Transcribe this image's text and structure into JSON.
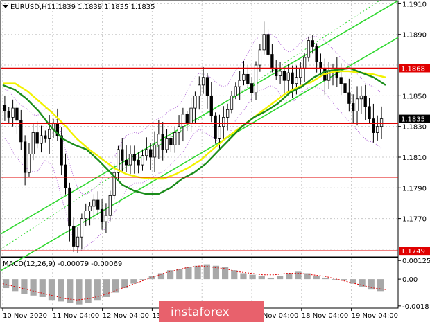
{
  "header": {
    "symbol": "EURUSD,H1",
    "ohlc": "1.1839 1.1839 1.1835 1.1835"
  },
  "macd": {
    "label": "MACD(12,26,9) -0.00079 -0.00069"
  },
  "watermark": {
    "text": "instaforex"
  },
  "colors": {
    "candle": "#000000",
    "ma_slow": "#1a8c1a",
    "ma_fast": "#f2f200",
    "channel": "#2fd82f",
    "level": "#e00000",
    "macd_hist": "#a8a8a8",
    "macd_signal": "#e00000",
    "envelope": "#b36bd9",
    "grid": "#c8c8c8"
  },
  "chart_data": [
    {
      "type": "candlestick",
      "title": "EURUSD,H1",
      "ylim": [
        1.1745,
        1.1912
      ],
      "y_ticks": [
        "1.1910",
        "1.1890",
        "1.1868",
        "1.1850",
        "1.1835",
        "1.1830",
        "1.1810",
        "1.1790",
        "1.1770",
        "1.1749"
      ],
      "x_labels": [
        "10 Nov 2020",
        "11 Nov 04:00",
        "12 Nov 04:00",
        "13 Nov 04:00",
        "16 Nov 04:00",
        "17 Nov 04:00",
        "18 Nov 04:00",
        "19 Nov 04:00"
      ],
      "current_price": 1.1835,
      "levels": [
        {
          "label": "1.1868",
          "value": 1.1868
        },
        {
          "label": "1.1832",
          "value": 1.1832
        },
        {
          "label": "1.1797",
          "value": 1.1797
        },
        {
          "label": "1.1749",
          "value": 1.1749
        }
      ],
      "close_path": [
        1.184,
        1.1836,
        1.1842,
        1.1834,
        1.182,
        1.18,
        1.1812,
        1.1826,
        1.1819,
        1.1824,
        1.1822,
        1.1828,
        1.1832,
        1.1824,
        1.1805,
        1.179,
        1.1765,
        1.1752,
        1.1758,
        1.177,
        1.1775,
        1.1778,
        1.1782,
        1.1776,
        1.1768,
        1.1772,
        1.1785,
        1.18,
        1.1815,
        1.1808,
        1.1805,
        1.1812,
        1.1808,
        1.1805,
        1.1811,
        1.1815,
        1.181,
        1.1818,
        1.1825,
        1.1815,
        1.1822,
        1.1818,
        1.1826,
        1.183,
        1.1838,
        1.1832,
        1.1842,
        1.185,
        1.1857,
        1.1862,
        1.185,
        1.1837,
        1.1822,
        1.183,
        1.1836,
        1.1841,
        1.185,
        1.1856,
        1.186,
        1.1864,
        1.1858,
        1.1852,
        1.187,
        1.188,
        1.189,
        1.1877,
        1.1868,
        1.1863,
        1.1866,
        1.186,
        1.1865,
        1.1858,
        1.1862,
        1.1868,
        1.1875,
        1.1886,
        1.1882,
        1.1872,
        1.1868,
        1.186,
        1.1866,
        1.1868,
        1.1862,
        1.1858,
        1.1852,
        1.1845,
        1.184,
        1.1848,
        1.185,
        1.1843,
        1.1835,
        1.1826,
        1.183,
        1.1835
      ],
      "ma_slow": [
        1.1857,
        1.1854,
        1.1848,
        1.184,
        1.183,
        1.1822,
        1.1818,
        1.1815,
        1.1808,
        1.18,
        1.1792,
        1.1788,
        1.1786,
        1.1786,
        1.179,
        1.1796,
        1.18,
        1.1806,
        1.1814,
        1.1822,
        1.183,
        1.1836,
        1.184,
        1.1845,
        1.1852,
        1.1856,
        1.1862,
        1.1866,
        1.1867,
        1.1868,
        1.1865,
        1.1862,
        1.1857
      ],
      "ma_fast": [
        1.1858,
        1.1858,
        1.1853,
        1.1846,
        1.1839,
        1.1831,
        1.1822,
        1.1815,
        1.1809,
        1.1803,
        1.1799,
        1.1797,
        1.1796,
        1.1796,
        1.1799,
        1.1803,
        1.1808,
        1.1815,
        1.1822,
        1.1828,
        1.1834,
        1.184,
        1.1846,
        1.1852,
        1.1856,
        1.1859,
        1.1864,
        1.1866,
        1.1866,
        1.1865,
        1.1864,
        1.1862
      ],
      "channel_lines": [
        {
          "from": [
            0,
            1.176
          ],
          "to": [
            1,
            1.1912
          ]
        },
        {
          "from": [
            0,
            1.1736
          ],
          "to": [
            1,
            1.1888
          ]
        },
        {
          "from": [
            0,
            1.175
          ],
          "to": [
            1,
            1.192
          ]
        }
      ]
    },
    {
      "type": "bar",
      "title": "MACD(12,26,9) -0.00079 -0.00069",
      "ylim": [
        -0.0019,
        0.0014
      ],
      "y_ticks": [
        "0.00125",
        "0.00",
        "-0.0018"
      ],
      "histogram": [
        -0.0006,
        -0.0008,
        -0.001,
        -0.0011,
        -0.0012,
        -0.0014,
        -0.0015,
        -0.0016,
        -0.0017,
        -0.0016,
        -0.0014,
        -0.0012,
        -0.0009,
        -0.0006,
        -0.0003,
        0.0,
        0.0002,
        0.0004,
        0.0006,
        0.0007,
        0.0008,
        0.0009,
        0.001,
        0.0009,
        0.0008,
        0.0006,
        0.0004,
        0.0003,
        0.0002,
        0.0001,
        0.0002,
        0.0004,
        0.0005,
        0.0004,
        0.0002,
        0.0001,
        0.0,
        -0.0001,
        -0.0003,
        -0.0005,
        -0.0007,
        -0.0008
      ],
      "signal": [
        -0.0003,
        -0.0005,
        -0.0007,
        -0.0009,
        -0.0011,
        -0.0013,
        -0.0014,
        -0.0013,
        -0.0011,
        -0.0008,
        -0.0005,
        -0.0002,
        0.0001,
        0.0004,
        0.0006,
        0.0008,
        0.0009,
        0.0008,
        0.0007,
        0.0005,
        0.0004,
        0.0003,
        0.0003,
        0.0004,
        0.0004,
        0.0003,
        0.0002,
        0.0,
        -0.0002,
        -0.0004,
        -0.0006,
        -0.0007
      ]
    }
  ]
}
